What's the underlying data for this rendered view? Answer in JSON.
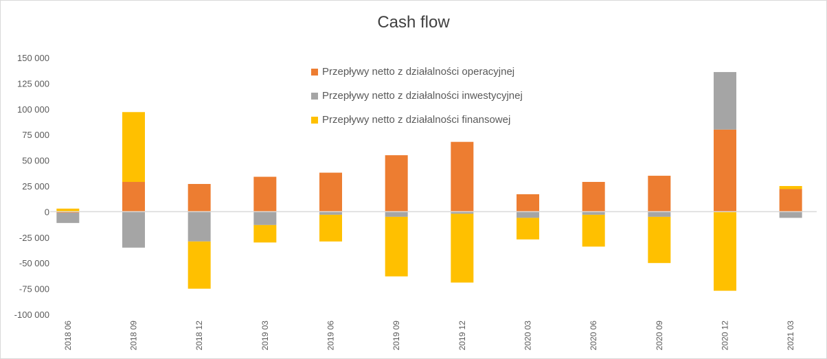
{
  "chart_data": {
    "type": "bar",
    "stacked": true,
    "title": "Cash flow",
    "categories": [
      "2018 06",
      "2018 09",
      "2018 12",
      "2019 03",
      "2019 06",
      "2019 09",
      "2019 12",
      "2020 03",
      "2020 06",
      "2020 09",
      "2020 12",
      "2021 03"
    ],
    "series": [
      {
        "name": "Przepływy netto z działalności operacyjnej",
        "color": "#ED7D31",
        "values": [
          -1000,
          29000,
          27000,
          34000,
          38000,
          55000,
          68000,
          17000,
          29000,
          35000,
          80000,
          22000
        ]
      },
      {
        "name": "Przepływy netto z działalności inwestycyjnej",
        "color": "#A5A5A5",
        "values": [
          -10000,
          -35000,
          -29000,
          -13000,
          -3000,
          -5000,
          -2000,
          -6000,
          -3000,
          -5000,
          56000,
          -6000
        ]
      },
      {
        "name": "Przepływy netto z działalności finansowej",
        "color": "#FFC000",
        "values": [
          3000,
          68000,
          -46000,
          -17000,
          -26000,
          -58000,
          -67000,
          -21000,
          -31000,
          -45000,
          -77000,
          3000
        ]
      }
    ],
    "ylim": [
      -100000,
      150000
    ],
    "yticks": [
      150000,
      125000,
      100000,
      75000,
      50000,
      25000,
      0,
      -25000,
      -50000,
      -75000,
      -100000
    ],
    "ytick_labels": [
      "150 000",
      "125 000",
      "100 000",
      "75 000",
      "50 000",
      "25 000",
      "0",
      "-25 000",
      "-50 000",
      "-75 000",
      "-100 000"
    ],
    "legend_position": "top-center",
    "grid": false
  }
}
